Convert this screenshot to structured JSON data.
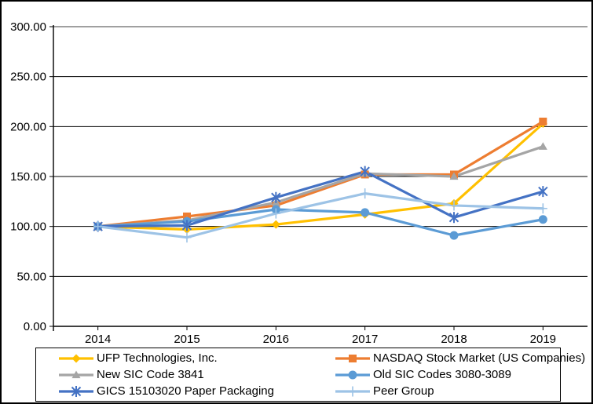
{
  "chart_data": {
    "type": "line",
    "title": "",
    "xlabel": "",
    "ylabel": "",
    "x_categories": [
      "2014",
      "2015",
      "2016",
      "2017",
      "2018",
      "2019"
    ],
    "y_ticks": [
      "300.00",
      "250.00",
      "200.00",
      "150.00",
      "100.00",
      "50.00",
      "0.00"
    ],
    "ylim": [
      0,
      300
    ],
    "y_step": 50,
    "grid": true,
    "legend_position": "bottom-box",
    "axis_color": "#000000",
    "top_gridline_color": "#808080",
    "series": [
      {
        "name": "UFP Technologies, Inc.",
        "color": "#FFC000",
        "marker": "diamond",
        "values": [
          100,
          97,
          102,
          112,
          123,
          203
        ]
      },
      {
        "name": "NASDAQ Stock Market (US Companies)",
        "color": "#ED7D31",
        "marker": "square",
        "values": [
          100,
          110,
          121,
          152,
          152,
          205
        ]
      },
      {
        "name": "New SIC Code 3841",
        "color": "#A5A5A5",
        "marker": "triangle",
        "values": [
          100,
          106,
          124,
          153,
          150,
          180
        ]
      },
      {
        "name": "Old SIC Codes 3080-3089",
        "color": "#5B9BD5",
        "marker": "circle",
        "values": [
          100,
          105,
          117,
          114,
          91,
          107
        ]
      },
      {
        "name": "GICS 15103020 Paper Packaging",
        "color": "#4472C4",
        "marker": "star",
        "values": [
          100,
          101,
          129,
          155,
          109,
          135
        ]
      },
      {
        "name": "Peer Group",
        "color": "#9DC3E6",
        "marker": "plus",
        "values": [
          100,
          89,
          113,
          133,
          121,
          118
        ]
      }
    ]
  }
}
